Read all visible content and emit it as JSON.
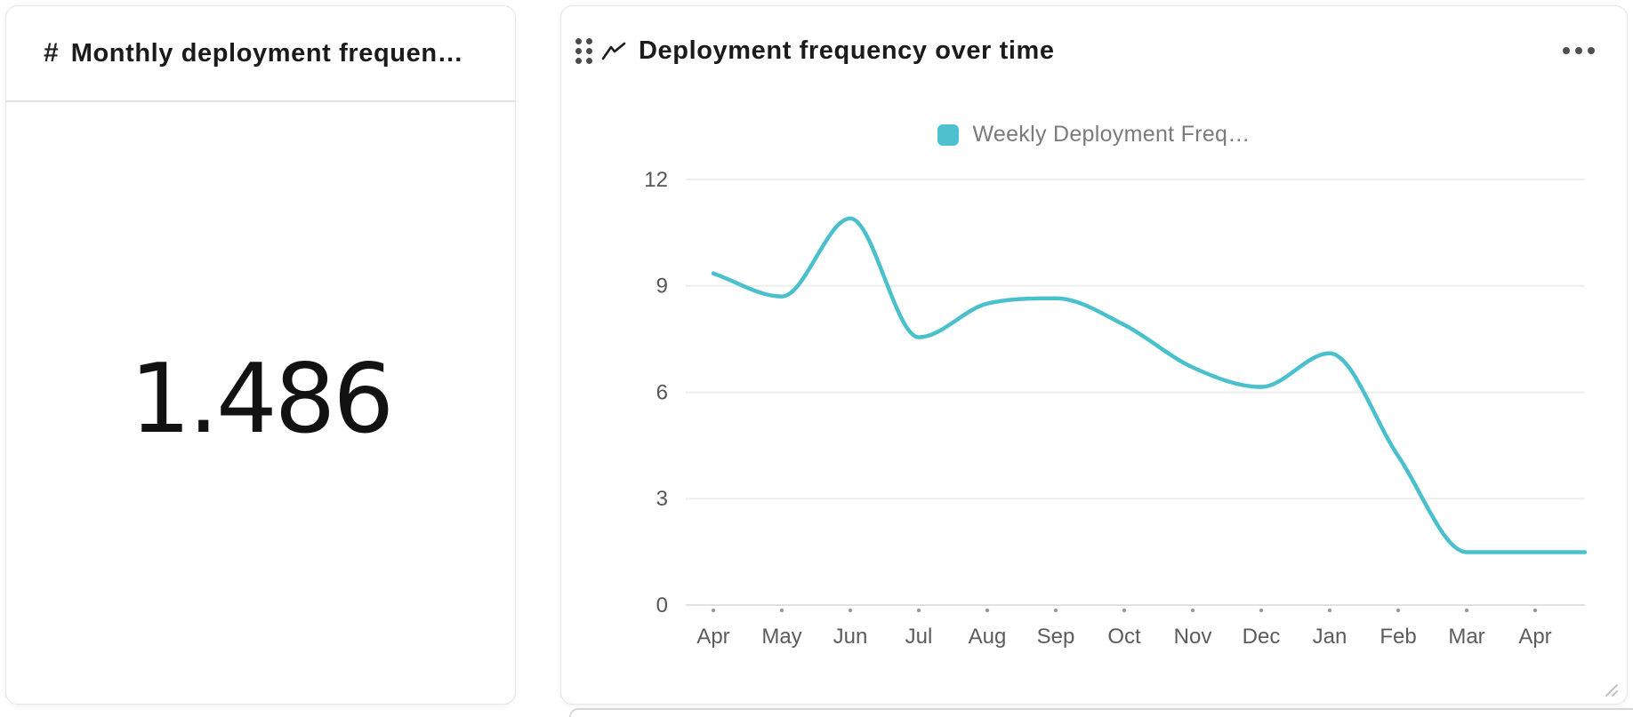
{
  "metric_card": {
    "icon": "#",
    "title": "Monthly deployment frequen…",
    "value": "1.486"
  },
  "chart_card": {
    "title": "Deployment frequency over time",
    "menu_icon": "ellipsis-horizontal",
    "legend": {
      "label": "Weekly Deployment Freq…",
      "swatch_color": "#4ec1ce"
    }
  },
  "chart_data": {
    "type": "line",
    "title": "Deployment frequency over time",
    "categories": [
      "Apr",
      "May",
      "Jun",
      "Jul",
      "Aug",
      "Sep",
      "Oct",
      "Nov",
      "Dec",
      "Jan",
      "Feb",
      "Mar",
      "Apr"
    ],
    "series": [
      {
        "name": "Weekly Deployment Freq…",
        "color": "#4bc0cd",
        "values": [
          9.35,
          8.7,
          10.9,
          7.55,
          8.5,
          8.65,
          7.9,
          6.7,
          6.15,
          7.1,
          4.2,
          1.49,
          1.49
        ]
      }
    ],
    "xlabel": "",
    "ylabel": "",
    "y_ticks": [
      0,
      3,
      6,
      9,
      12
    ],
    "ylim": [
      0,
      12
    ],
    "grid": true,
    "smooth": true,
    "legend_position": "top",
    "colors": {
      "gridline": "#eeeeee",
      "axis_line": "#e2e2e2",
      "tick_dot": "#9a9a9a",
      "y_label": "#575757",
      "x_label": "#5c5c5c"
    }
  }
}
